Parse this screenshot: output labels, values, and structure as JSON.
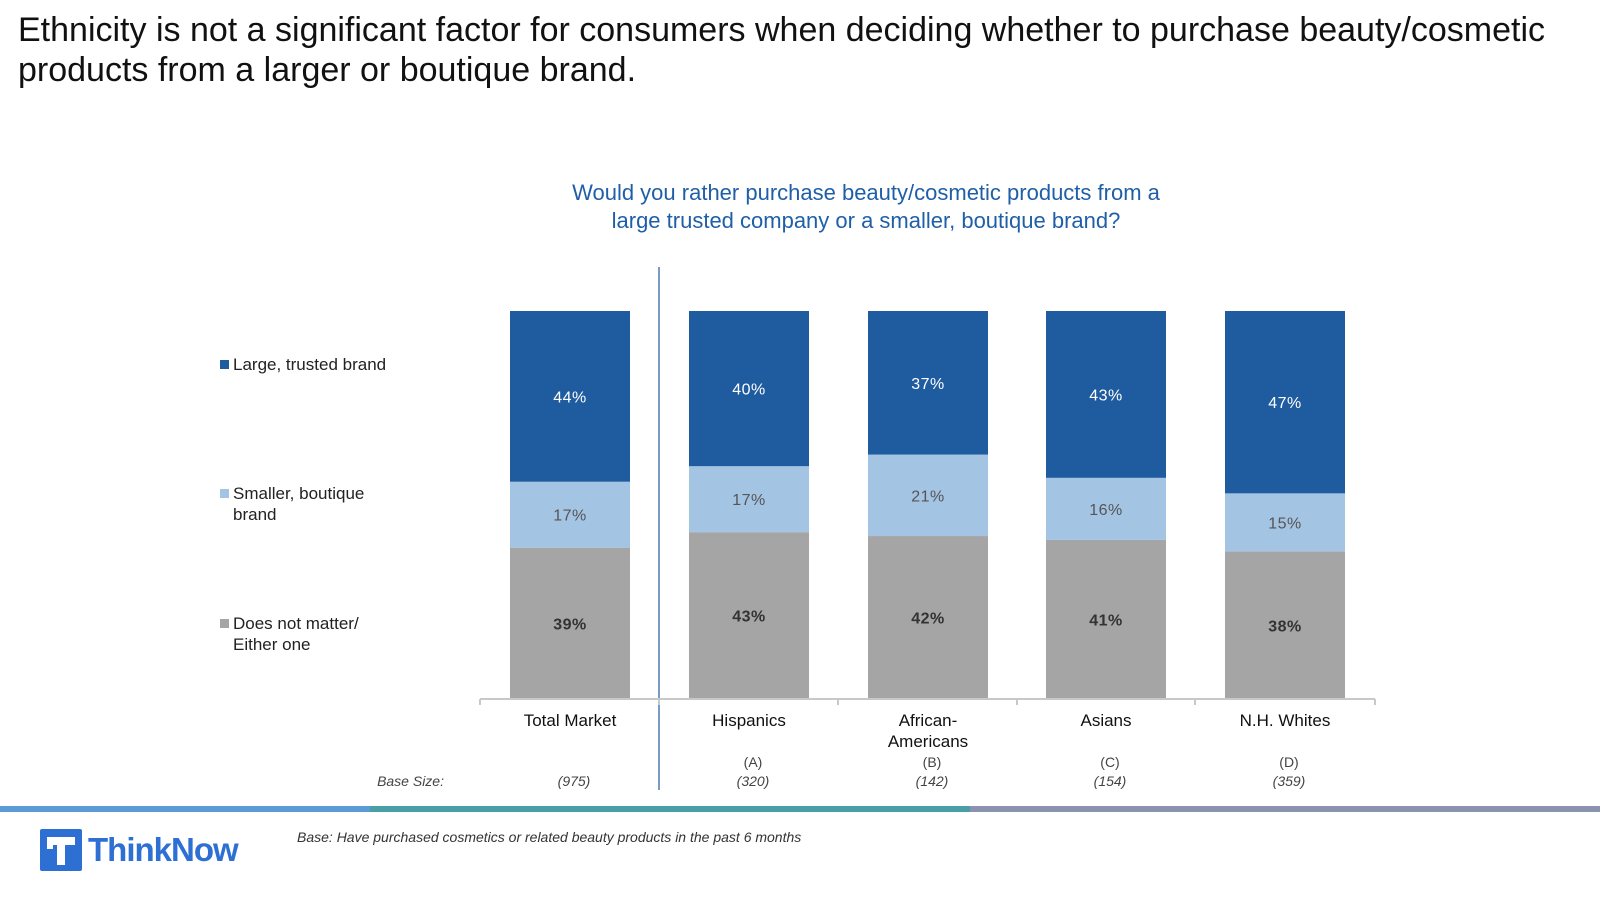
{
  "headline": "Ethnicity is not a significant factor for consumers when deciding whether to purchase beauty/cosmetic products from a larger or boutique brand.",
  "chart_data": {
    "type": "bar",
    "stacked": true,
    "title_lines": [
      "Would you rather purchase beauty/cosmetic products from a",
      "large trusted company or a smaller, boutique brand?"
    ],
    "categories": [
      {
        "label": [
          "Total Market"
        ],
        "letter": "",
        "base": "(975)"
      },
      {
        "label": [
          "Hispanics"
        ],
        "letter": "(A)",
        "base": "(320)"
      },
      {
        "label": [
          "African-",
          "Americans"
        ],
        "letter": "(B)",
        "base": "(142)"
      },
      {
        "label": [
          "Asians"
        ],
        "letter": "(C)",
        "base": "(154)"
      },
      {
        "label": [
          "N.H. Whites"
        ],
        "letter": "(D)",
        "base": "(359)"
      }
    ],
    "series": [
      {
        "name": "Does not matter/ Either one",
        "legend_lines": [
          "Does not matter/",
          "Either one"
        ],
        "color": "#a5a5a5",
        "label_color": "#333333",
        "label_bold": true,
        "values": [
          39,
          43,
          42,
          41,
          38
        ]
      },
      {
        "name": "Smaller, boutique brand",
        "legend_lines": [
          "Smaller, boutique",
          "brand"
        ],
        "color": "#a4c4e4",
        "label_color": "#555555",
        "label_bold": false,
        "values": [
          17,
          17,
          21,
          16,
          15
        ]
      },
      {
        "name": "Large, trusted brand",
        "legend_lines": [
          "Large, trusted brand"
        ],
        "color": "#1f5b9f",
        "label_color": "#ffffff",
        "label_bold": false,
        "values": [
          44,
          40,
          37,
          43,
          47
        ]
      }
    ],
    "value_suffix": "%",
    "ylim": [
      0,
      100
    ],
    "legend_position": "left",
    "base_size_label": "Base Size:"
  },
  "footnote": "Base: Have purchased cosmetics or related beauty products in the past 6 months",
  "logo_text": "ThinkNow",
  "colors": {
    "title_blue": "#1f5fa8",
    "strip": [
      "#5b9bd5",
      "#4a9fa7",
      "#8a92b0"
    ]
  }
}
